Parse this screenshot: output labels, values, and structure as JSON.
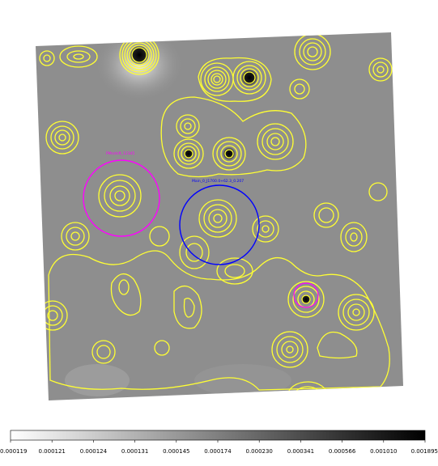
{
  "image": {
    "background": "#ffffff",
    "field_color_mid": "#8f8f8f",
    "contour_color": "#ffff33"
  },
  "annotations": [
    {
      "text": "PMcshift_12345",
      "color": "#ff00ff"
    },
    {
      "text": "Main_0_J1700.0+62.3_0.207",
      "color": "#0000ff"
    },
    {
      "text": "",
      "color": "#ff00ff"
    }
  ],
  "colorbar": {
    "ticks": [
      "0.000119",
      "0.000121",
      "0.000124",
      "0.000131",
      "0.000145",
      "0.000174",
      "0.000230",
      "0.000341",
      "0.000566",
      "0.001010",
      "0.001895"
    ]
  }
}
